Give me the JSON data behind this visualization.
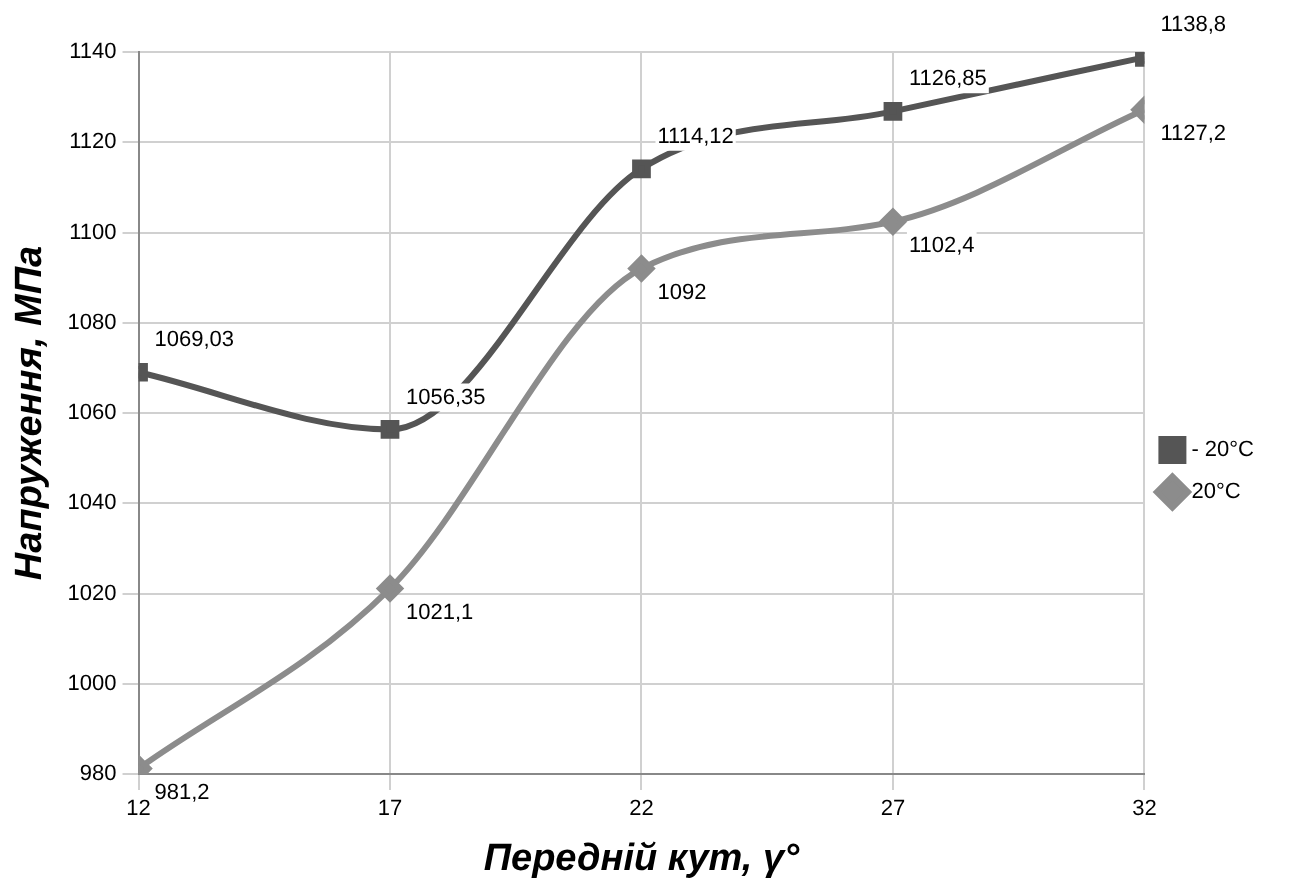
{
  "chart_data": {
    "type": "line",
    "xlabel": "Передній кут, γ°",
    "ylabel": "Напруження, МПа",
    "x": [
      12,
      17,
      22,
      27,
      32
    ],
    "series": [
      {
        "name": "- 20°C",
        "color": "#555555",
        "marker": "square",
        "values": [
          1069.03,
          1056.35,
          1114.12,
          1126.85,
          1138.8
        ],
        "value_labels": [
          "1069,03",
          "1056,35",
          "1114,12",
          "1126,85",
          "1138,8"
        ]
      },
      {
        "name": "20°C",
        "color": "#8c8c8c",
        "marker": "diamond",
        "values": [
          981.2,
          1021.1,
          1092,
          1102.4,
          1127.2
        ],
        "value_labels": [
          "981,2",
          "1021,1",
          "1092",
          "1102,4",
          "1127,2"
        ]
      }
    ],
    "xlim": [
      12,
      32
    ],
    "xticks": [
      12,
      17,
      22,
      27,
      32
    ],
    "ylim": [
      980,
      1140
    ],
    "yticks": [
      980,
      1000,
      1020,
      1040,
      1060,
      1080,
      1100,
      1120,
      1140
    ],
    "grid": true,
    "legend": "right"
  }
}
